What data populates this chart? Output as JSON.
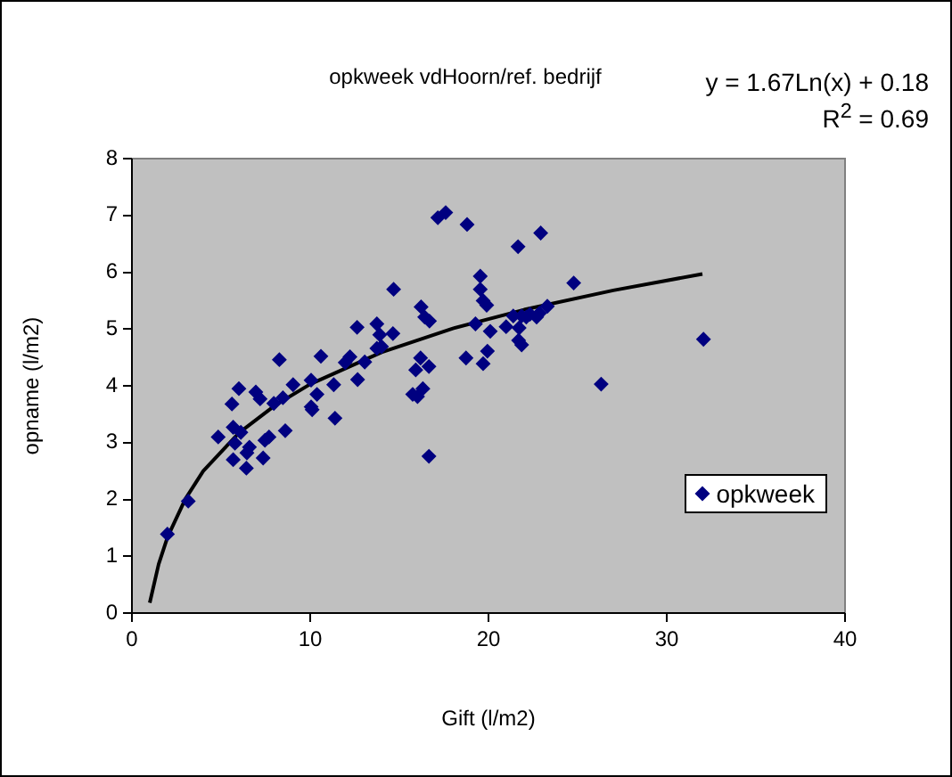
{
  "chart_data": {
    "type": "scatter",
    "title": "opkweek vdHoorn/ref. bedrijf",
    "xlabel": "Gift (l/m2)",
    "ylabel": "opname (l/m2)",
    "annotations": [
      "y = 1.67Ln(x) + 0.18",
      "R$^{2}$ = 0.69"
    ],
    "xlim": [
      0,
      40
    ],
    "xticks": [
      0,
      10,
      20,
      30,
      40
    ],
    "ylim": [
      0,
      8
    ],
    "yticks": [
      0,
      1,
      2,
      3,
      4,
      5,
      6,
      7,
      8
    ],
    "legend": "bottom right",
    "marker": "diamond",
    "series": [
      {
        "name": "opkweek",
        "color": "#000080",
        "x": [
          1.99,
          3.16,
          4.84,
          5.61,
          6.0,
          5.68,
          6.11,
          5.78,
          5.68,
          6.59,
          6.45,
          6.42,
          6.95,
          7.19,
          7.36,
          7.46,
          7.69,
          7.96,
          8.27,
          8.47,
          8.6,
          9.04,
          10.05,
          10.05,
          10.11,
          10.38,
          10.6,
          11.32,
          11.39,
          11.96,
          12.23,
          12.63,
          12.66,
          13.06,
          13.74,
          13.9,
          13.74,
          14.0,
          14.64,
          14.68,
          15.92,
          15.75,
          16.02,
          16.32,
          16.19,
          16.66,
          16.22,
          16.42,
          16.69,
          16.66,
          17.16,
          17.6,
          18.8,
          18.74,
          19.27,
          19.54,
          19.54,
          19.7,
          19.9,
          20.1,
          19.94,
          19.7,
          21.66,
          22.93,
          24.78,
          20.99,
          21.39,
          21.72,
          21.69,
          21.86,
          21.86,
          22.12,
          22.33,
          22.7,
          22.86,
          23.3,
          26.32,
          32.06
        ],
        "values": [
          1.39,
          1.97,
          3.1,
          3.68,
          3.95,
          3.27,
          3.18,
          2.99,
          2.7,
          2.92,
          2.82,
          2.55,
          3.89,
          3.77,
          2.73,
          3.04,
          3.1,
          3.69,
          4.46,
          3.79,
          3.21,
          4.02,
          4.1,
          3.63,
          3.58,
          3.85,
          4.52,
          4.02,
          3.43,
          4.41,
          4.51,
          5.03,
          4.11,
          4.42,
          5.09,
          4.9,
          4.66,
          4.69,
          4.92,
          5.7,
          4.28,
          3.85,
          3.81,
          3.95,
          4.49,
          4.34,
          5.39,
          5.21,
          5.14,
          2.76,
          6.96,
          7.05,
          6.84,
          4.49,
          5.09,
          5.93,
          5.7,
          5.5,
          5.42,
          4.96,
          4.61,
          4.39,
          6.45,
          6.69,
          5.81,
          5.04,
          5.23,
          5.02,
          4.8,
          4.72,
          5.23,
          5.21,
          5.26,
          5.21,
          5.28,
          5.4,
          4.03,
          4.82
        ]
      },
      {
        "type": "line",
        "color": "#000000",
        "marker": "none",
        "x": [
          1,
          1.5,
          2,
          3,
          4,
          6,
          8,
          10,
          14,
          18,
          22,
          27,
          32
        ],
        "values": [
          0.18,
          0.86,
          1.34,
          2.01,
          2.5,
          3.17,
          3.65,
          4.03,
          4.59,
          5.01,
          5.34,
          5.68,
          5.97
        ]
      }
    ]
  }
}
